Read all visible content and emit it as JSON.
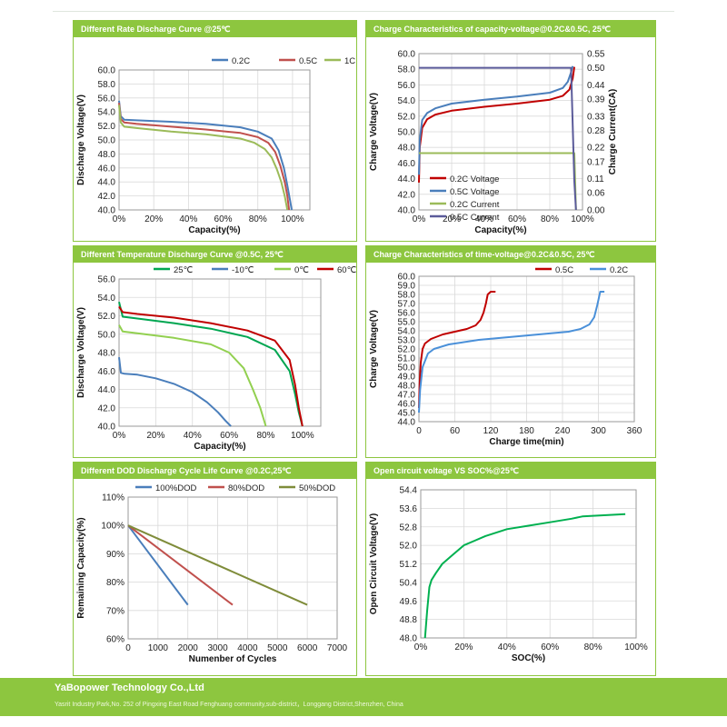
{
  "footer": {
    "company": "YaBopower Technology Co.,Ltd",
    "address": "Yasrit Industry Park,No. 252 of Pingxing East Road Fenghuang community,sub-district，Longgang District,Shenzhen, China"
  },
  "chart_data": [
    {
      "id": "rate",
      "type": "line",
      "title": "Different Rate Discharge Curve @25℃",
      "xlabel": "Capacity(%)",
      "ylabel": "Discharge Voltage(V)",
      "xlim": [
        0,
        110
      ],
      "ylim": [
        40,
        60
      ],
      "xticks": [
        0,
        20,
        40,
        60,
        80,
        100
      ],
      "xtick_labels": [
        "0%",
        "20%",
        "40%",
        "60%",
        "80%",
        "100%"
      ],
      "yticks": [
        40,
        42,
        44,
        46,
        48,
        50,
        52,
        54,
        56,
        58,
        60
      ],
      "ytick_labels": [
        "40.0",
        "42.0",
        "44.0",
        "46.0",
        "48.0",
        "50.0",
        "52.0",
        "54.0",
        "56.0",
        "58.0",
        "60.0"
      ],
      "legend_position": "top-right",
      "series": [
        {
          "name": "0.2C",
          "color": "#4a7ebb",
          "x": [
            0,
            1,
            3,
            10,
            30,
            50,
            70,
            80,
            88,
            92,
            95,
            97,
            98.5,
            99.5
          ],
          "y": [
            55.6,
            53.4,
            52.9,
            52.8,
            52.6,
            52.3,
            51.8,
            51.2,
            50.2,
            48.5,
            46,
            43.5,
            41.5,
            40
          ]
        },
        {
          "name": "0.5C",
          "color": "#c0504d",
          "x": [
            0,
            1,
            3,
            10,
            30,
            50,
            70,
            80,
            86,
            90,
            93,
            95.5,
            97,
            98
          ],
          "y": [
            55.3,
            53,
            52.5,
            52.3,
            51.9,
            51.5,
            51,
            50.4,
            49.6,
            48.3,
            46.3,
            44,
            42,
            40
          ]
        },
        {
          "name": "1C",
          "color": "#9bbb59",
          "x": [
            0,
            1,
            3,
            10,
            30,
            50,
            70,
            78,
            84,
            88,
            91,
            93.5,
            95.5,
            97
          ],
          "y": [
            55,
            52.5,
            51.9,
            51.7,
            51.2,
            50.8,
            50.2,
            49.6,
            48.7,
            47.5,
            45.8,
            44,
            42,
            40
          ]
        }
      ]
    },
    {
      "id": "charge_cap",
      "type": "line",
      "title": "Charge Characteristics of capacity-voltage@0.2C&0.5C, 25℃",
      "xlabel": "Capacity(%)",
      "ylabel": "Charge Voltage(V)",
      "y2label": "Charge Current(CA)",
      "xlim": [
        0,
        100
      ],
      "ylim": [
        40,
        60
      ],
      "y2lim": [
        0,
        0.55
      ],
      "xticks": [
        0,
        20,
        40,
        60,
        80,
        100
      ],
      "xtick_labels": [
        "0%",
        "20%",
        "40%",
        "60%",
        "80%",
        "100%"
      ],
      "yticks": [
        40,
        42,
        44,
        46,
        48,
        50,
        52,
        54,
        56,
        58,
        60
      ],
      "ytick_labels": [
        "40.0",
        "42.0",
        "44.0",
        "46.0",
        "48.0",
        "50.0",
        "52.0",
        "54.0",
        "56.0",
        "58.0",
        "60.0"
      ],
      "y2ticks": [
        0,
        0.06,
        0.11,
        0.17,
        0.22,
        0.28,
        0.33,
        0.39,
        0.44,
        0.5,
        0.55
      ],
      "y2tick_labels": [
        "0.00",
        "0.06",
        "0.11",
        "0.17",
        "0.22",
        "0.28",
        "0.33",
        "0.39",
        "0.44",
        "0.50",
        "0.55"
      ],
      "legend_position": "bottom-left",
      "series": [
        {
          "name": "0.2C Voltage",
          "axis": "y",
          "color": "#c00000",
          "x": [
            0,
            0.5,
            2,
            5,
            10,
            20,
            40,
            60,
            80,
            88,
            92,
            94,
            95
          ],
          "y": [
            43.5,
            48,
            50.5,
            51.6,
            52.2,
            52.7,
            53.2,
            53.6,
            54.1,
            54.6,
            55.4,
            56.8,
            58.3
          ]
        },
        {
          "name": "0.5C Voltage",
          "axis": "y",
          "color": "#4a7ebb",
          "x": [
            0,
            0.5,
            2,
            5,
            10,
            20,
            40,
            60,
            80,
            88,
            91,
            93,
            94
          ],
          "y": [
            44.5,
            49,
            51.5,
            52.4,
            53,
            53.6,
            54.1,
            54.5,
            55,
            55.6,
            56.4,
            57.6,
            58.4
          ]
        },
        {
          "name": "0.2C Current",
          "axis": "y2",
          "color": "#9bbb59",
          "x": [
            0,
            95,
            95.5,
            96
          ],
          "y": [
            0.2,
            0.2,
            0.1,
            0.0
          ]
        },
        {
          "name": "0.5C Current",
          "axis": "y2",
          "color": "#5b5b9a",
          "x": [
            0,
            93,
            94,
            95,
            96
          ],
          "y": [
            0.5,
            0.5,
            0.3,
            0.1,
            0.0
          ]
        }
      ]
    },
    {
      "id": "temp",
      "type": "line",
      "title": "Different Temperature Discharge Curve @0.5C, 25℃",
      "xlabel": "Capacity(%)",
      "ylabel": "Discharge Voltage(V)",
      "xlim": [
        0,
        110
      ],
      "ylim": [
        40,
        56
      ],
      "xticks": [
        0,
        20,
        40,
        60,
        80,
        100
      ],
      "xtick_labels": [
        "0%",
        "20%",
        "40%",
        "60%",
        "80%",
        "100%"
      ],
      "yticks": [
        40,
        42,
        44,
        46,
        48,
        50,
        52,
        54,
        56
      ],
      "ytick_labels": [
        "40.0",
        "42.0",
        "44.0",
        "46.0",
        "48.0",
        "50.0",
        "52.0",
        "54.0",
        "56.0"
      ],
      "legend_position": "top",
      "series": [
        {
          "name": "25℃",
          "color": "#00a651",
          "x": [
            0,
            2,
            10,
            30,
            50,
            70,
            85,
            93,
            96,
            98,
            100
          ],
          "y": [
            53.5,
            51.9,
            51.7,
            51.2,
            50.6,
            49.7,
            48.3,
            46,
            43.5,
            41.5,
            40
          ]
        },
        {
          "name": "-10℃",
          "color": "#4a7ebb",
          "x": [
            0,
            1,
            3,
            10,
            20,
            30,
            40,
            48,
            54,
            58,
            61
          ],
          "y": [
            47.5,
            45.8,
            45.7,
            45.6,
            45.2,
            44.6,
            43.7,
            42.6,
            41.5,
            40.6,
            40
          ]
        },
        {
          "name": "0℃",
          "color": "#92d050",
          "x": [
            0,
            2,
            10,
            30,
            50,
            60,
            68,
            73,
            77,
            80
          ],
          "y": [
            51,
            50.3,
            50.1,
            49.6,
            48.9,
            48,
            46.3,
            44,
            42,
            40
          ]
        },
        {
          "name": "60℃",
          "color": "#c00000",
          "x": [
            0,
            2,
            10,
            30,
            50,
            70,
            85,
            93,
            96,
            98,
            100
          ],
          "y": [
            53,
            52.4,
            52.2,
            51.8,
            51.2,
            50.4,
            49.3,
            47.2,
            44.5,
            42,
            40
          ]
        }
      ]
    },
    {
      "id": "charge_time",
      "type": "line",
      "title": "Charge Characteristics of time-voltage@0.2C&0.5C, 25℃",
      "xlabel": "Charge time(min)",
      "ylabel": "Charge Voltage(V)",
      "xlim": [
        0,
        360
      ],
      "ylim": [
        44,
        60
      ],
      "xticks": [
        0,
        60,
        120,
        180,
        240,
        300,
        360
      ],
      "xtick_labels": [
        "0",
        "60",
        "120",
        "180",
        "240",
        "300",
        "360"
      ],
      "yticks": [
        44,
        45,
        46,
        47,
        48,
        49,
        50,
        51,
        52,
        53,
        54,
        55,
        56,
        57,
        58,
        59,
        60
      ],
      "ytick_labels": [
        "44.0",
        "45.0",
        "46.0",
        "47.0",
        "48.0",
        "49.0",
        "50.0",
        "51.0",
        "52.0",
        "53.0",
        "54.0",
        "55.0",
        "56.0",
        "57.0",
        "58.0",
        "59.0",
        "60.0"
      ],
      "legend_position": "top-right",
      "series": [
        {
          "name": "0.5C",
          "color": "#c00000",
          "x": [
            0,
            1,
            3,
            6,
            10,
            20,
            40,
            60,
            80,
            95,
            103,
            108,
            112,
            115,
            120,
            128
          ],
          "y": [
            45.5,
            48,
            50.5,
            52,
            52.6,
            53.1,
            53.6,
            53.9,
            54.2,
            54.6,
            55.2,
            56,
            57,
            58,
            58.3,
            58.3
          ]
        },
        {
          "name": "0.2C",
          "color": "#4a90d9",
          "x": [
            0,
            2,
            6,
            15,
            25,
            50,
            100,
            150,
            200,
            250,
            270,
            285,
            293,
            298,
            303,
            310
          ],
          "y": [
            45,
            47.5,
            50,
            51.5,
            52,
            52.5,
            53,
            53.3,
            53.6,
            53.9,
            54.2,
            54.7,
            55.5,
            56.8,
            58.3,
            58.3
          ]
        }
      ]
    },
    {
      "id": "dod",
      "type": "line",
      "title": "Different DOD Discharge Cycle Life Curve @0.2C,25℃",
      "xlabel": "Numenber of Cycles",
      "ylabel": "Remaining Capacity(%)",
      "xlim": [
        0,
        7000
      ],
      "ylim": [
        60,
        110
      ],
      "xticks": [
        0,
        1000,
        2000,
        3000,
        4000,
        5000,
        6000,
        7000
      ],
      "xtick_labels": [
        "0",
        "1000",
        "2000",
        "3000",
        "4000",
        "5000",
        "6000",
        "7000"
      ],
      "yticks": [
        60,
        70,
        80,
        90,
        100,
        110
      ],
      "ytick_labels": [
        "60%",
        "70%",
        "80%",
        "90%",
        "100%",
        "110%"
      ],
      "legend_position": "top",
      "series": [
        {
          "name": "100%DOD",
          "color": "#4a7ebb",
          "x": [
            0,
            2000
          ],
          "y": [
            100,
            72
          ]
        },
        {
          "name": "80%DOD",
          "color": "#c0504d",
          "x": [
            0,
            3500
          ],
          "y": [
            100,
            72
          ]
        },
        {
          "name": "50%DOD",
          "color": "#7f8c3a",
          "x": [
            0,
            6000
          ],
          "y": [
            100,
            72
          ]
        }
      ]
    },
    {
      "id": "ocv",
      "type": "line",
      "title": "Open circuit voltage VS SOC%@25℃",
      "xlabel": "SOC(%)",
      "ylabel": "Open Circuit Voltage(V)",
      "xlim": [
        0,
        100
      ],
      "ylim": [
        48,
        54.4
      ],
      "xticks": [
        0,
        20,
        40,
        60,
        80,
        100
      ],
      "xtick_labels": [
        "0%",
        "20%",
        "40%",
        "60%",
        "80%",
        "100%"
      ],
      "yticks": [
        48,
        48.8,
        49.6,
        50.4,
        51.2,
        52,
        52.8,
        53.6,
        54.4
      ],
      "ytick_labels": [
        "48.0",
        "48.8",
        "49.6",
        "50.4",
        "51.2",
        "52.0",
        "52.8",
        "53.6",
        "54.4"
      ],
      "legend_position": "none",
      "series": [
        {
          "name": "",
          "color": "#00b050",
          "x": [
            2,
            3,
            4,
            5,
            7,
            10,
            15,
            20,
            25,
            30,
            40,
            50,
            60,
            70,
            75,
            85,
            95
          ],
          "y": [
            48,
            49.2,
            50.2,
            50.5,
            50.8,
            51.2,
            51.6,
            52,
            52.2,
            52.4,
            52.7,
            52.85,
            53,
            53.15,
            53.25,
            53.3,
            53.35
          ]
        }
      ]
    }
  ]
}
